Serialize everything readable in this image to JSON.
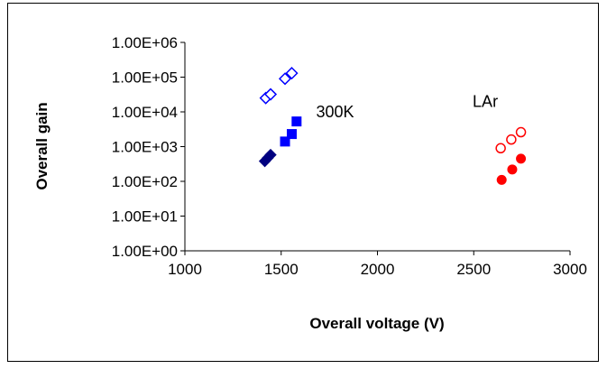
{
  "chart_data": {
    "type": "scatter",
    "title": "",
    "xlabel": "Overall voltage (V)",
    "ylabel": "Overall gain",
    "xlim": [
      1000,
      3000
    ],
    "ylim": [
      1,
      1000000
    ],
    "yscale": "log",
    "x_ticks": [
      1000,
      1500,
      2000,
      2500,
      3000
    ],
    "x_tick_labels": [
      "1000",
      "1500",
      "2000",
      "2500",
      "3000"
    ],
    "y_ticks": [
      1,
      10,
      100,
      1000,
      10000,
      100000,
      1000000
    ],
    "y_tick_labels": [
      "1.00E+00",
      "1.00E+01",
      "1.00E+02",
      "1.00E+03",
      "1.00E+04",
      "1.00E+05",
      "1.00E+06"
    ],
    "grid": false,
    "legend": "none",
    "annotations": [
      {
        "text": "300K",
        "x": 1780,
        "y": 10000
      },
      {
        "text": "LAr",
        "x": 2560,
        "y": 20000
      }
    ],
    "series": [
      {
        "marker": "diamond-open",
        "color": "#0000ff",
        "points": [
          [
            1420,
            25000
          ],
          [
            1445,
            32000
          ],
          [
            1520,
            90000
          ],
          [
            1555,
            130000
          ]
        ]
      },
      {
        "marker": "diamond-filled",
        "color": "#000080",
        "points": [
          [
            1415,
            380
          ],
          [
            1430,
            470
          ],
          [
            1445,
            580
          ]
        ]
      },
      {
        "marker": "square-filled",
        "color": "#0000ff",
        "points": [
          [
            1520,
            1400
          ],
          [
            1555,
            2300
          ],
          [
            1580,
            5300
          ]
        ]
      },
      {
        "marker": "circle-open",
        "color": "#ff0000",
        "points": [
          [
            2640,
            900
          ],
          [
            2695,
            1600
          ],
          [
            2745,
            2600
          ]
        ]
      },
      {
        "marker": "circle-filled",
        "color": "#ff0000",
        "points": [
          [
            2645,
            110
          ],
          [
            2700,
            220
          ],
          [
            2745,
            450
          ]
        ]
      }
    ]
  }
}
